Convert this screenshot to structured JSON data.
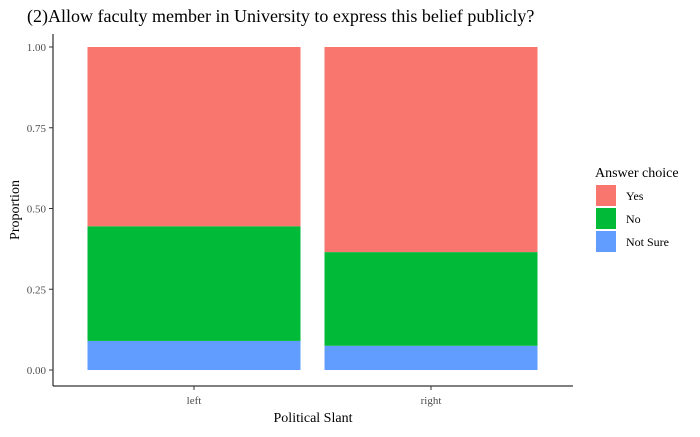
{
  "chart_data": {
    "type": "bar",
    "stacked": true,
    "title": "(2)Allow faculty member in University to express this belief publicly?",
    "xlabel": "Political Slant",
    "ylabel": "Proportion",
    "categories": [
      "left",
      "right"
    ],
    "ylim": [
      0,
      1
    ],
    "yticks": [
      "0.00",
      "0.25",
      "0.50",
      "0.75",
      "1.00"
    ],
    "grid": false,
    "legend": {
      "title": "Answer choice",
      "position": "right"
    },
    "series": [
      {
        "name": "Not Sure",
        "color": "#619CFF",
        "values": [
          0.09,
          0.075
        ]
      },
      {
        "name": "No",
        "color": "#00BA38",
        "values": [
          0.355,
          0.29
        ]
      },
      {
        "name": "Yes",
        "color": "#F8766D",
        "values": [
          0.555,
          0.635
        ]
      }
    ],
    "legend_order": [
      "Yes",
      "No",
      "Not Sure"
    ]
  }
}
